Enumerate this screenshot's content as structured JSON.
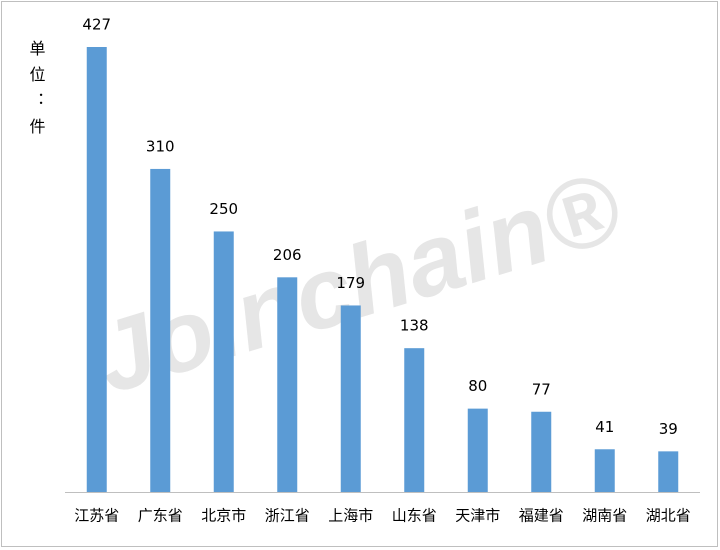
{
  "chart_data": {
    "type": "bar",
    "y_label": "单位：件",
    "watermark": "Joinchain®",
    "categories": [
      "江苏省",
      "广东省",
      "北京市",
      "浙江省",
      "上海市",
      "山东省",
      "天津市",
      "福建省",
      "湖南省",
      "湖北省"
    ],
    "values": [
      427,
      310,
      250,
      206,
      179,
      138,
      80,
      77,
      41,
      39
    ],
    "color": "#5b9bd5"
  }
}
